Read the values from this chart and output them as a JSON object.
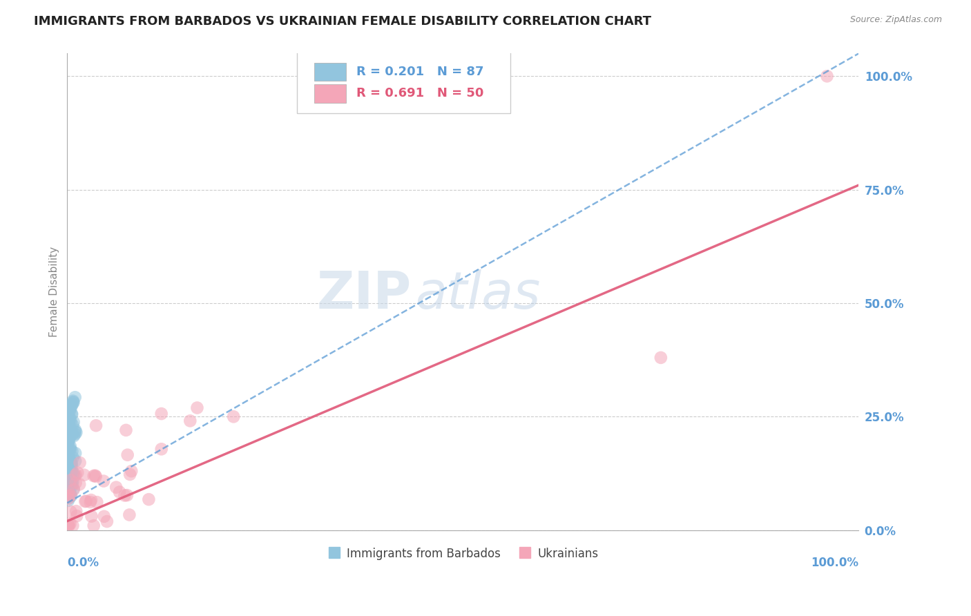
{
  "title": "IMMIGRANTS FROM BARBADOS VS UKRAINIAN FEMALE DISABILITY CORRELATION CHART",
  "source": "Source: ZipAtlas.com",
  "ylabel": "Female Disability",
  "right_yticklabels": [
    "0.0%",
    "25.0%",
    "50.0%",
    "75.0%",
    "100.0%"
  ],
  "right_ytick_vals": [
    0.0,
    0.25,
    0.5,
    0.75,
    1.0
  ],
  "legend_text1": "R = 0.201   N = 87",
  "legend_text2": "R = 0.691   N = 50",
  "blue_color": "#92c5de",
  "pink_color": "#f4a6b8",
  "blue_line_color": "#5b9bd5",
  "pink_line_color": "#e05878",
  "blue_r": 0.201,
  "pink_r": 0.691,
  "watermark_zip": "ZIP",
  "watermark_atlas": "atlas",
  "xmin": 0.0,
  "xmax": 1.0,
  "ymin": 0.0,
  "ymax": 1.05,
  "blue_seed": 42,
  "pink_seed": 99
}
